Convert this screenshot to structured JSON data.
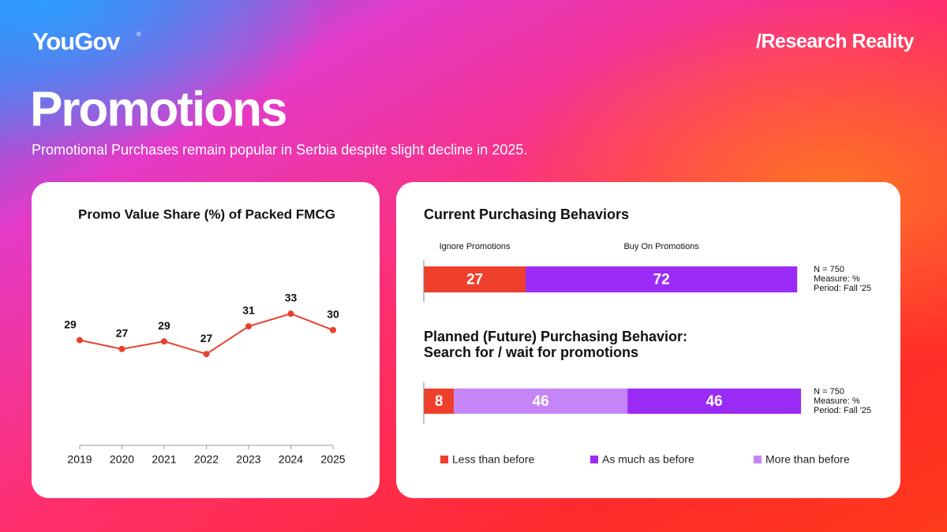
{
  "header": {
    "logo": "YouGov",
    "logo_mark": "®",
    "tag": "/Research Reality",
    "title": "Promotions",
    "subtitle": "Promotional Purchases remain popular in Serbia despite slight decline in 2025."
  },
  "chart_data": [
    {
      "type": "line",
      "title": "Promo Value Share (%) of Packed FMCG",
      "categories": [
        "2019",
        "2020",
        "2021",
        "2022",
        "2023",
        "2024",
        "2025"
      ],
      "values": [
        28.8,
        27.4,
        28.6,
        26.6,
        31.0,
        33.0,
        30.4
      ],
      "value_labels": [
        "29",
        "27",
        "29",
        "27",
        "31",
        "33",
        "30"
      ],
      "color": "#e8402f"
    },
    {
      "type": "stacked_bar",
      "title": [
        "Current Purchasing Behaviors"
      ],
      "series": [
        {
          "name": "Ignore Promotions",
          "color": "#ee3f2c",
          "values": [
            27
          ]
        },
        {
          "name": "Buy On Promotions",
          "color": "#9b2cf5",
          "values": [
            72
          ]
        }
      ],
      "notes": [
        "N = 750",
        "Measure: %",
        "Period: Fall '25"
      ],
      "legend": false
    },
    {
      "type": "stacked_bar",
      "title": [
        "Planned (Future) Purchasing Behavior:",
        "Search for / wait for promotions"
      ],
      "series": [
        {
          "name": "Less than before",
          "color": "#ee3f2c",
          "values": [
            8
          ]
        },
        {
          "name": "More than before",
          "color": "#c685f7",
          "values": [
            46
          ]
        },
        {
          "name": "As much as before",
          "color": "#9b2cf5",
          "values": [
            46
          ]
        }
      ],
      "notes": [
        "N = 750",
        "Measure: %",
        "Period: Fall '25"
      ],
      "legend": true
    }
  ]
}
